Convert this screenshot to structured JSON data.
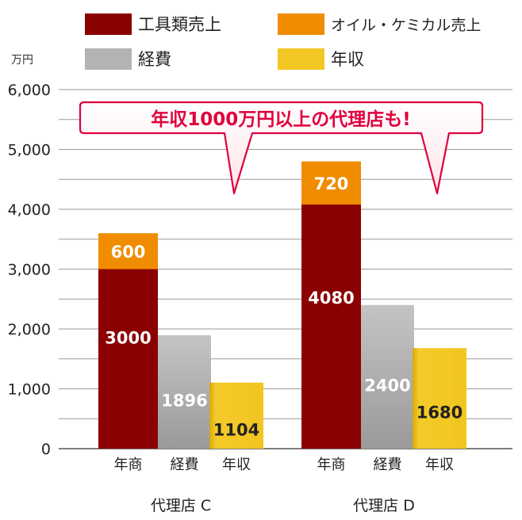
{
  "chart_data": {
    "type": "bar",
    "stacked_first_bar": true,
    "unit_label": "万円",
    "ylim": [
      0,
      6000
    ],
    "yticks": [
      {
        "value": 0,
        "label": "0"
      },
      {
        "value": 1000,
        "label": "1,000"
      },
      {
        "value": 2000,
        "label": "2,000"
      },
      {
        "value": 3000,
        "label": "3,000"
      },
      {
        "value": 4000,
        "label": "4,000"
      },
      {
        "value": 5000,
        "label": "5,000"
      },
      {
        "value": 6000,
        "label": "6,000"
      }
    ],
    "grid": true,
    "legend": [
      {
        "name": "工具類売上",
        "color": "#8b0000"
      },
      {
        "name": "オイル・ケミカル売上",
        "color": "#f08c00"
      },
      {
        "name": "経費",
        "color": "#b3b3b3"
      },
      {
        "name": "年収",
        "color": "#f2c623"
      }
    ],
    "callout": "年収1000万円以上の代理店も!",
    "groups": [
      {
        "name": "代理店 C",
        "bars": [
          {
            "category": "年商",
            "segments": [
              {
                "series": "工具類売上",
                "value": 3000,
                "label": "3000"
              },
              {
                "series": "オイル・ケミカル売上",
                "value": 600,
                "label": "600"
              }
            ]
          },
          {
            "category": "経費",
            "segments": [
              {
                "series": "経費",
                "value": 1896,
                "label": "1896"
              }
            ]
          },
          {
            "category": "年収",
            "segments": [
              {
                "series": "年収",
                "value": 1104,
                "label": "1104"
              }
            ]
          }
        ]
      },
      {
        "name": "代理店 D",
        "bars": [
          {
            "category": "年商",
            "segments": [
              {
                "series": "工具類売上",
                "value": 4080,
                "label": "4080"
              },
              {
                "series": "オイル・ケミカル売上",
                "value": 720,
                "label": "720"
              }
            ]
          },
          {
            "category": "経費",
            "segments": [
              {
                "series": "経費",
                "value": 2400,
                "label": "2400"
              }
            ]
          },
          {
            "category": "年収",
            "segments": [
              {
                "series": "年収",
                "value": 1680,
                "label": "1680"
              }
            ]
          }
        ]
      }
    ]
  }
}
